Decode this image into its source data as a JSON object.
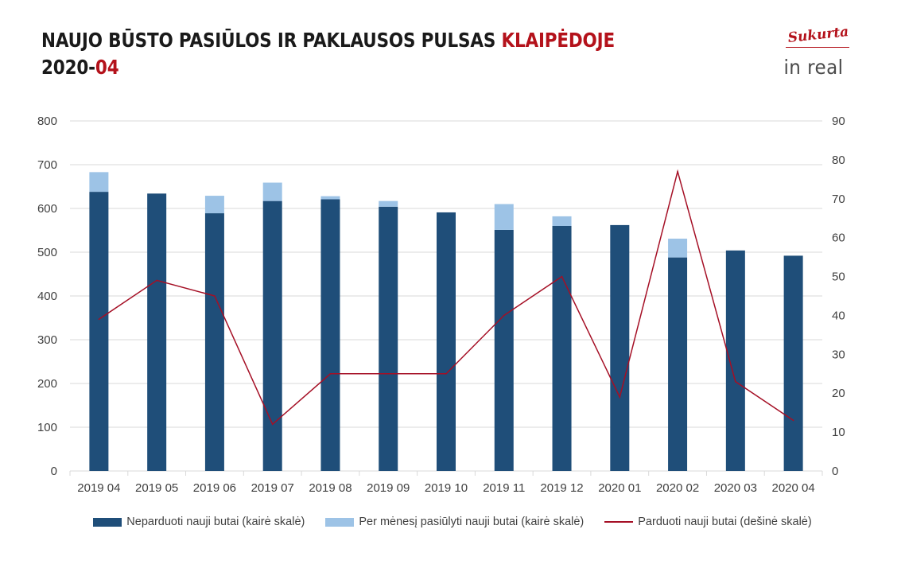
{
  "header": {
    "title_main": "NAUJO BŪSTO PASIŪLOS IR PAKLAUSOS PULSAS ",
    "title_city": "KLAIPĖDOJE",
    "date_prefix": "2020-",
    "date_month": "04"
  },
  "logo": {
    "script": "Sukurta",
    "main": "in real"
  },
  "colors": {
    "accent": "#b4121b",
    "unsold": "#1f4e79",
    "offered": "#9dc3e6",
    "sold": "#a50f25",
    "grid": "#d9d9d9"
  },
  "chart_data": {
    "type": "bar",
    "categories": [
      "2019 04",
      "2019 05",
      "2019 06",
      "2019 07",
      "2019 08",
      "2019 09",
      "2019 10",
      "2019 11",
      "2019 12",
      "2020 01",
      "2020 02",
      "2020 03",
      "2020 04"
    ],
    "series": [
      {
        "name": "Neparduoti nauji butai (kairė skalė)",
        "type": "bar",
        "axis": "left",
        "values": [
          638,
          634,
          589,
          617,
          621,
          604,
          591,
          551,
          560,
          562,
          488,
          504,
          492
        ]
      },
      {
        "name": "Per mėnesį pasiūlyti nauji butai (kairė skalė)",
        "type": "bar-stacked",
        "axis": "left",
        "values": [
          45,
          0,
          40,
          42,
          7,
          13,
          0,
          59,
          22,
          0,
          43,
          0,
          0
        ]
      },
      {
        "name": "Parduoti nauji butai (dešinė skalė)",
        "type": "line",
        "axis": "right",
        "values": [
          39,
          49,
          45,
          12,
          25,
          25,
          25,
          40,
          50,
          19,
          77,
          23,
          13
        ]
      }
    ],
    "ylim": [
      0,
      800
    ],
    "y2lim": [
      0,
      90
    ],
    "yticks": [
      "0",
      "100",
      "200",
      "300",
      "400",
      "500",
      "600",
      "700",
      "800"
    ],
    "y2ticks": [
      "0",
      "10",
      "20",
      "30",
      "40",
      "50",
      "60",
      "70",
      "80",
      "90"
    ],
    "grid": true,
    "legend_position": "bottom"
  }
}
